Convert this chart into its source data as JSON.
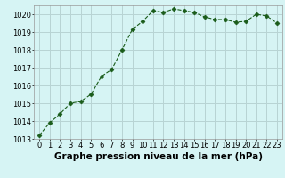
{
  "x": [
    0,
    1,
    2,
    3,
    4,
    5,
    6,
    7,
    8,
    9,
    10,
    11,
    12,
    13,
    14,
    15,
    16,
    17,
    18,
    19,
    20,
    21,
    22,
    23
  ],
  "y": [
    1013.2,
    1013.9,
    1014.4,
    1015.0,
    1015.1,
    1015.5,
    1016.5,
    1016.9,
    1018.0,
    1019.15,
    1019.6,
    1020.2,
    1020.1,
    1020.3,
    1020.2,
    1020.1,
    1019.85,
    1019.7,
    1019.7,
    1019.55,
    1019.6,
    1020.0,
    1019.9,
    1019.5
  ],
  "line_color": "#1a5c1a",
  "marker": "D",
  "marker_size": 2.5,
  "bg_color": "#d6f4f4",
  "grid_color": "#b8d4d4",
  "title": "Graphe pression niveau de la mer (hPa)",
  "ylim": [
    1013.0,
    1020.5
  ],
  "xlim_min": -0.5,
  "xlim_max": 23.5,
  "yticks": [
    1013,
    1014,
    1015,
    1016,
    1017,
    1018,
    1019,
    1020
  ],
  "xticks": [
    0,
    1,
    2,
    3,
    4,
    5,
    6,
    7,
    8,
    9,
    10,
    11,
    12,
    13,
    14,
    15,
    16,
    17,
    18,
    19,
    20,
    21,
    22,
    23
  ],
  "title_fontsize": 7.5,
  "tick_fontsize": 6.0
}
